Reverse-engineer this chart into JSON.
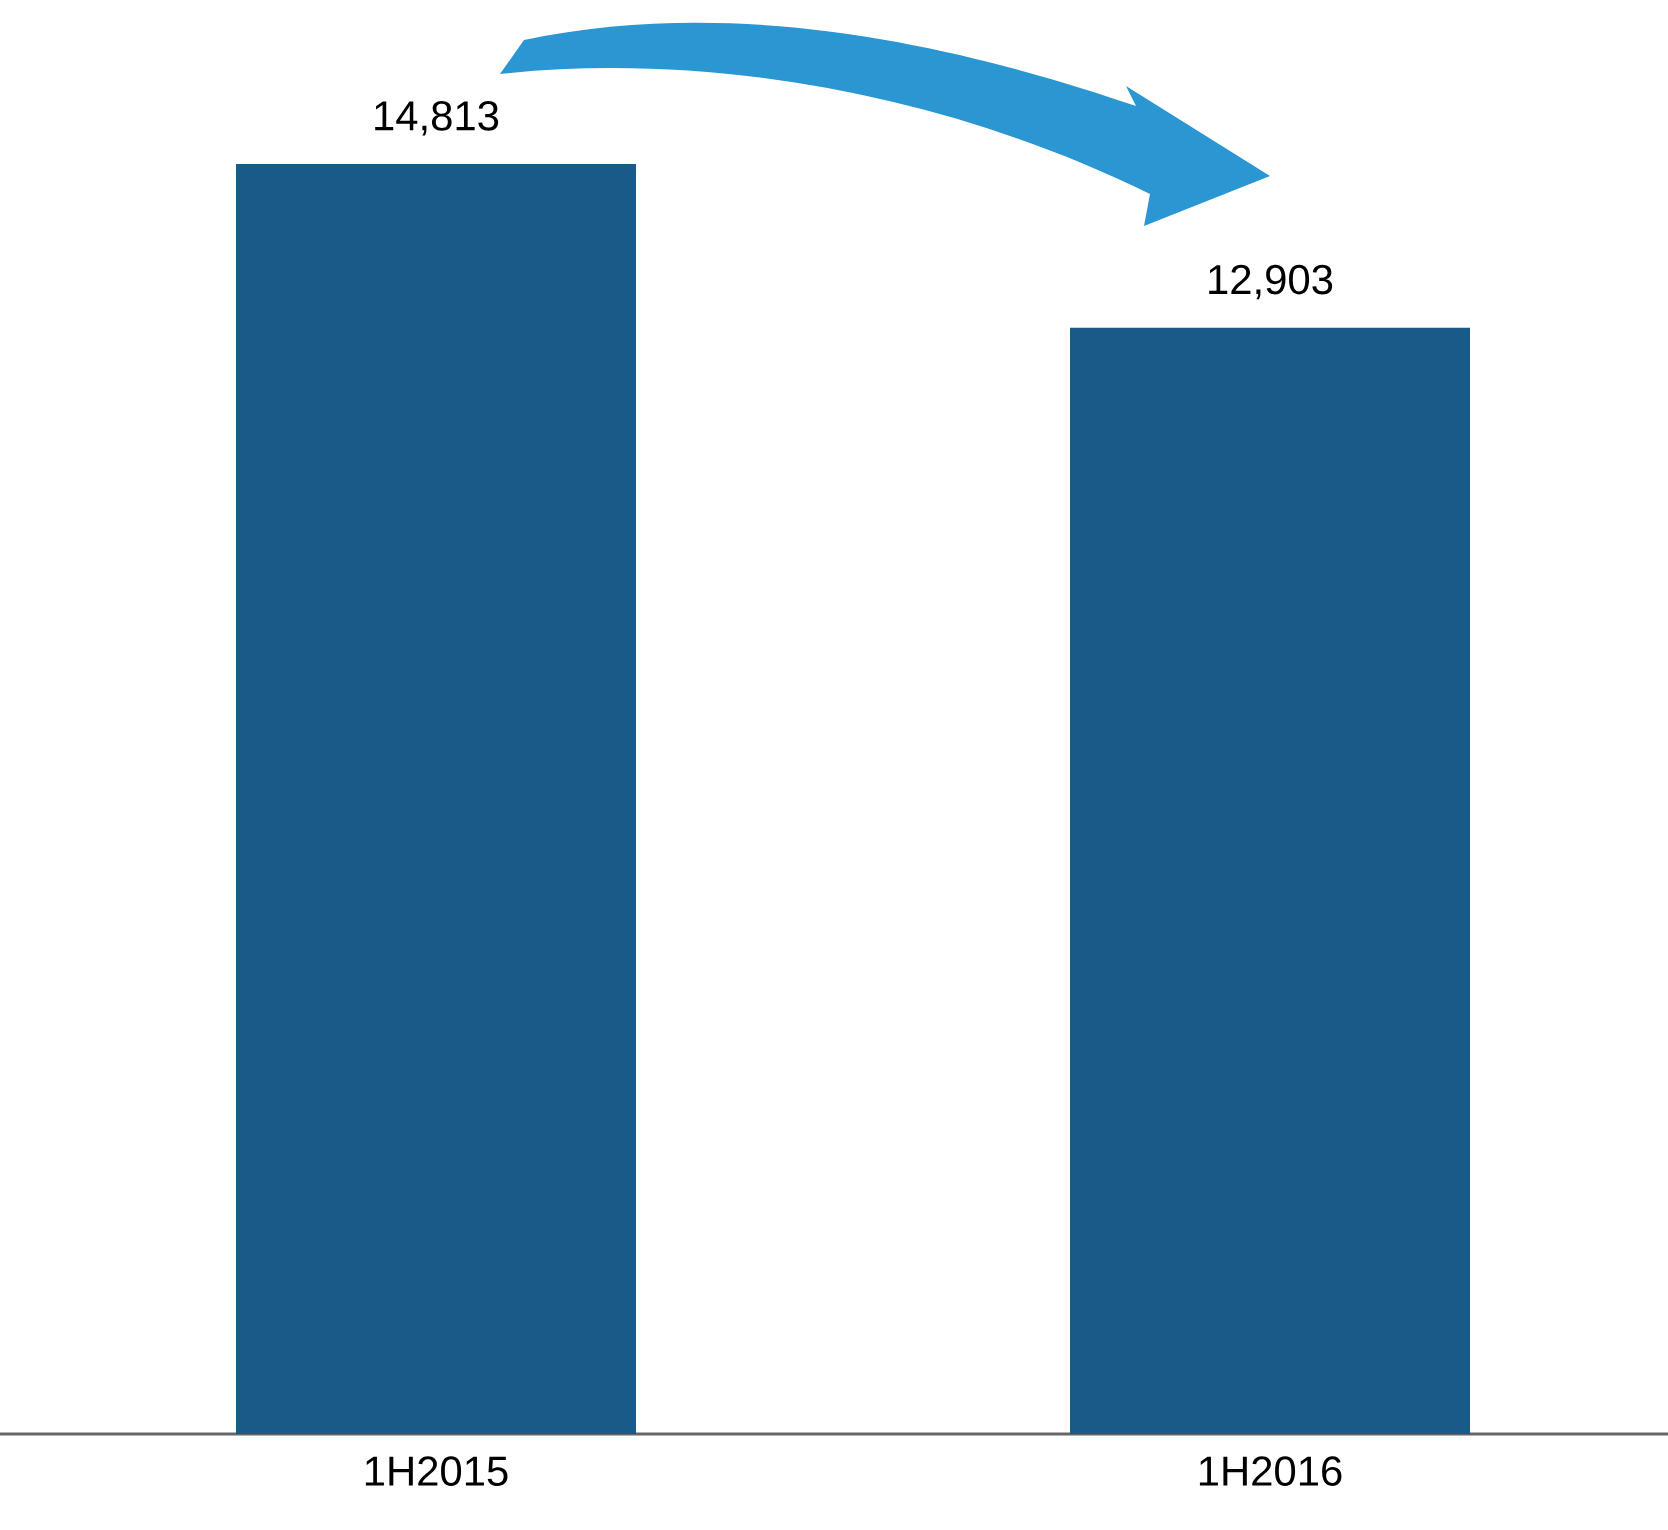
{
  "chart_data": {
    "type": "bar",
    "categories": [
      "1H2015",
      "1H2016"
    ],
    "values": [
      14813,
      12903
    ],
    "value_labels": [
      "14,813",
      "12,903"
    ],
    "color": "#1a5a88"
  }
}
